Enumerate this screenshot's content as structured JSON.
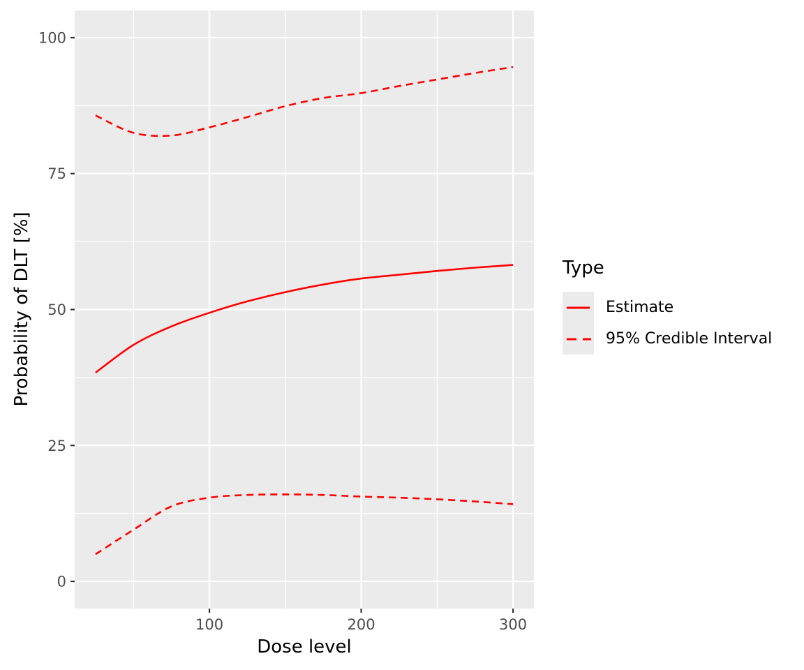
{
  "chart_data": {
    "type": "line",
    "title": "",
    "xlabel": "Dose level",
    "ylabel": "Probability of DLT [%]",
    "xlim": [
      11.25,
      313.75
    ],
    "ylim": [
      -5,
      105
    ],
    "grid": true,
    "legend_position": "right",
    "x": [
      25,
      50,
      75,
      100,
      125,
      150,
      175,
      200,
      225,
      250,
      275,
      300
    ],
    "series": [
      {
        "name": "Estimate",
        "style": "solid",
        "color": "#FF0000",
        "values": [
          38.4,
          43.5,
          46.9,
          49.4,
          51.5,
          53.2,
          54.6,
          55.7,
          56.4,
          57.1,
          57.7,
          58.2
        ]
      },
      {
        "name": "95% Credible Interval (upper)",
        "style": "dashed",
        "color": "#FF0000",
        "values": [
          85.7,
          82.5,
          82.0,
          83.5,
          85.4,
          87.4,
          88.9,
          89.8,
          91.1,
          92.3,
          93.5,
          94.6
        ]
      },
      {
        "name": "95% Credible Interval (lower)",
        "style": "dashed",
        "color": "#FF0000",
        "values": [
          5.0,
          9.5,
          13.8,
          15.4,
          15.9,
          16.0,
          15.9,
          15.6,
          15.4,
          15.1,
          14.7,
          14.2
        ]
      }
    ],
    "x_major_ticks": [
      100,
      200,
      300
    ],
    "x_minor_ticks": [
      50,
      150,
      250
    ],
    "y_major_ticks": [
      0,
      25,
      50,
      75,
      100
    ],
    "y_minor_ticks": [
      12.5,
      37.5,
      62.5,
      87.5
    ],
    "legend": {
      "title": "Type",
      "entries": [
        {
          "label": "Estimate",
          "style": "solid"
        },
        {
          "label": "95% Credible Interval",
          "style": "dashed"
        }
      ]
    },
    "colors": {
      "panel_bg": "#EBEBEB",
      "grid": "#FFFFFF",
      "line": "#FF0000",
      "tick_mark": "#333333",
      "tick_text": "#4D4D4D",
      "title_text": "#000000"
    }
  }
}
